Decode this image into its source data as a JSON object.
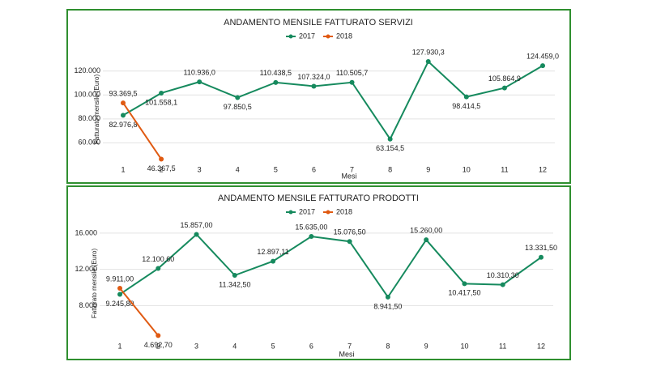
{
  "chart_data": [
    {
      "type": "line",
      "title": "ANDAMENTO MENSILE FATTURATO SERVIZI",
      "x_label": "Mesi",
      "y_label": "Fatturato mensile (Euro)",
      "categories": [
        "1",
        "2",
        "3",
        "4",
        "5",
        "6",
        "7",
        "8",
        "9",
        "10",
        "11",
        "12"
      ],
      "series": [
        {
          "name": "2017",
          "color": "#168a5e",
          "values": [
            82976.8,
            101558.1,
            110936.0,
            97850.5,
            110438.5,
            107324.0,
            110505.7,
            63154.5,
            127930.3,
            98414.5,
            105864.9,
            124459.0
          ],
          "value_labels": [
            "82.976,8",
            "101.558,1",
            "110.936,0",
            "97.850,5",
            "110.438,5",
            "107.324,0",
            "110.505,7",
            "63.154,5",
            "127.930,3",
            "98.414,5",
            "105.864,9",
            "124.459,0"
          ]
        },
        {
          "name": "2018",
          "color": "#e05a12",
          "values": [
            93369.5,
            46367.5,
            null,
            null,
            null,
            null,
            null,
            null,
            null,
            null,
            null,
            null
          ],
          "value_labels": [
            "93.369,5",
            "46.367,5",
            null,
            null,
            null,
            null,
            null,
            null,
            null,
            null,
            null,
            null
          ]
        }
      ],
      "ylim": [
        44000,
        132000
      ],
      "yticks": [
        {
          "value": 60000,
          "label": "60.000"
        },
        {
          "value": 80000,
          "label": "80.000"
        },
        {
          "value": 100000,
          "label": "100.000"
        },
        {
          "value": 120000,
          "label": "120.000"
        }
      ],
      "grid": true
    },
    {
      "type": "line",
      "title": "ANDAMENTO MENSILE FATTURATO PRODOTTI",
      "x_label": "Mesi",
      "y_label": "Fatturato mensile (Euro)",
      "categories": [
        "1",
        "2",
        "3",
        "4",
        "5",
        "6",
        "7",
        "8",
        "9",
        "10",
        "11",
        "12"
      ],
      "series": [
        {
          "name": "2017",
          "color": "#168a5e",
          "values": [
            9245.8,
            12100.6,
            15857.0,
            11342.5,
            12897.11,
            15635.0,
            15076.5,
            8941.5,
            15260.0,
            10417.5,
            10310.3,
            13331.5
          ],
          "value_labels": [
            "9.245,80",
            "12.100,60",
            "15.857,00",
            "11.342,50",
            "12.897,11",
            "15.635,00",
            "15.076,50",
            "8.941,50",
            "15.260,00",
            "10.417,50",
            "10.310,30",
            "13.331,50"
          ]
        },
        {
          "name": "2018",
          "color": "#e05a12",
          "values": [
            9911.0,
            4692.7,
            null,
            null,
            null,
            null,
            null,
            null,
            null,
            null,
            null,
            null
          ],
          "value_labels": [
            "9.911,00",
            "4.692,70",
            null,
            null,
            null,
            null,
            null,
            null,
            null,
            null,
            null,
            null
          ]
        }
      ],
      "ylim": [
        3300,
        17600
      ],
      "yticks": [
        {
          "value": 8000,
          "label": "8.000"
        },
        {
          "value": 12000,
          "label": "12.000"
        },
        {
          "value": 16000,
          "label": "16.000"
        }
      ],
      "grid": true
    }
  ]
}
